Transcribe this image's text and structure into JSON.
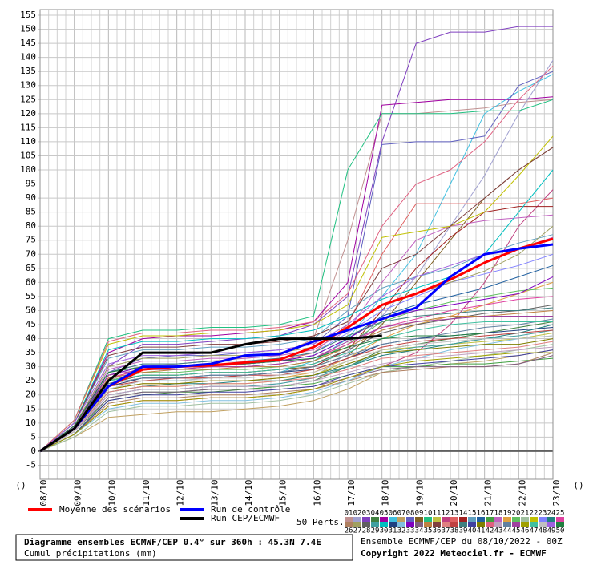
{
  "chart_data": {
    "type": "line",
    "title": "Diagramme ensembles ECMWF/CEP 0.4° sur 360h : 45.3N 7.4E",
    "subtitle": "Cumul précipitations (mm)",
    "run_info": "Ensemble ECMWF/CEP du 08/10/2022 - 00Z",
    "copyright": "Copyright 2022 Meteociel.fr - ECMWF",
    "x_unit_left": "()",
    "x_unit_right": "()",
    "perturbation_label": "50 Perts.",
    "grid": true,
    "categories": [
      "08/10",
      "09/10",
      "10/10",
      "11/10",
      "12/10",
      "13/10",
      "14/10",
      "15/10",
      "16/10",
      "17/10",
      "18/10",
      "19/10",
      "20/10",
      "21/10",
      "22/10",
      "23/10"
    ],
    "ylim": [
      -10,
      157
    ],
    "yticks": [
      -5,
      0,
      5,
      10,
      15,
      20,
      25,
      30,
      35,
      40,
      45,
      50,
      55,
      60,
      65,
      70,
      75,
      80,
      85,
      90,
      95,
      100,
      105,
      110,
      115,
      120,
      125,
      130,
      135,
      140,
      145,
      150,
      155
    ],
    "series": [
      {
        "name": "Moyenne des scénarios",
        "color": "#ff0000",
        "line_width": 3,
        "values": [
          0,
          8,
          23,
          29,
          30,
          30.5,
          31.5,
          32.5,
          37,
          44,
          52,
          56,
          61,
          67,
          72,
          75.5
        ]
      },
      {
        "name": "Run de contrôle",
        "color": "#0000ff",
        "line_width": 3,
        "values": [
          0,
          8,
          23,
          30,
          30,
          31,
          34,
          34.5,
          39,
          43,
          47,
          51,
          62,
          70,
          72,
          73.5
        ]
      },
      {
        "name": "Run CEP/ECMWF",
        "color": "#000000",
        "line_width": 3,
        "values": [
          0,
          8,
          25,
          35,
          35,
          35,
          38,
          40,
          40,
          40,
          41,
          null,
          null,
          null,
          null,
          null
        ]
      },
      {
        "name": "01",
        "color": "#c09090",
        "line_width": 1,
        "values": [
          0,
          8,
          25,
          30,
          31,
          32,
          33,
          34,
          40,
          75,
          120,
          120,
          121,
          122,
          124,
          125
        ]
      },
      {
        "name": "02",
        "color": "#a0a0d0",
        "line_width": 1,
        "values": [
          0,
          7,
          20,
          22,
          22,
          23,
          23,
          24,
          26,
          35,
          48,
          62,
          80,
          98,
          120,
          139
        ]
      },
      {
        "name": "03",
        "color": "#8040c0",
        "line_width": 1,
        "values": [
          0,
          9,
          30,
          38,
          38,
          39,
          40,
          41,
          45,
          55,
          110,
          145,
          149,
          149,
          151,
          151
        ]
      },
      {
        "name": "04",
        "color": "#408040",
        "line_width": 1,
        "values": [
          0,
          6,
          18,
          20,
          21,
          21,
          22,
          23,
          25,
          30,
          36,
          38,
          40,
          42,
          44,
          46
        ]
      },
      {
        "name": "05",
        "color": "#a000a0",
        "line_width": 1,
        "values": [
          0,
          10,
          35,
          40,
          41,
          41,
          42,
          43,
          46,
          60,
          123,
          124,
          125,
          125,
          125,
          126
        ]
      },
      {
        "name": "06",
        "color": "#40c0e0",
        "line_width": 1,
        "values": [
          0,
          8,
          22,
          25,
          25,
          26,
          27,
          28,
          32,
          40,
          55,
          70,
          95,
          120,
          128,
          134
        ]
      },
      {
        "name": "07",
        "color": "#c0a060",
        "line_width": 1,
        "values": [
          0,
          5,
          12,
          13,
          14,
          14,
          15,
          16,
          18,
          22,
          28,
          30,
          31,
          32,
          34,
          36
        ]
      },
      {
        "name": "08",
        "color": "#6060c0",
        "line_width": 1,
        "values": [
          0,
          9,
          28,
          33,
          34,
          34,
          35,
          36,
          38,
          48,
          109,
          110,
          110,
          112,
          130,
          135
        ]
      },
      {
        "name": "09",
        "color": "#806020",
        "line_width": 1,
        "values": [
          0,
          7,
          24,
          27,
          27,
          28,
          28,
          29,
          30,
          34,
          45,
          60,
          75,
          90,
          100,
          108
        ]
      },
      {
        "name": "10",
        "color": "#20c080",
        "line_width": 1,
        "values": [
          0,
          11,
          40,
          43,
          43,
          44,
          44,
          45,
          48,
          100,
          120,
          120,
          120,
          121,
          121,
          125
        ]
      },
      {
        "name": "11",
        "color": "#c0c040",
        "line_width": 1,
        "values": [
          0,
          8,
          21,
          23,
          23,
          24,
          24,
          25,
          27,
          32,
          36,
          37,
          38,
          39,
          40,
          42
        ]
      },
      {
        "name": "12",
        "color": "#c04080",
        "line_width": 1,
        "values": [
          0,
          6,
          16,
          18,
          18,
          19,
          19,
          20,
          22,
          26,
          30,
          35,
          45,
          60,
          80,
          93
        ]
      },
      {
        "name": "13",
        "color": "#e06060",
        "line_width": 1,
        "values": [
          0,
          9,
          26,
          29,
          30,
          30,
          31,
          32,
          35,
          45,
          70,
          88,
          88,
          88,
          88,
          90
        ]
      },
      {
        "name": "14",
        "color": "#a02020",
        "line_width": 1,
        "values": [
          0,
          7,
          23,
          26,
          26,
          26,
          27,
          28,
          30,
          36,
          50,
          65,
          76,
          85,
          87,
          87
        ]
      },
      {
        "name": "15",
        "color": "#60a0c0",
        "line_width": 1,
        "values": [
          0,
          10,
          33,
          36,
          36,
          37,
          37,
          38,
          40,
          50,
          58,
          62,
          65,
          70,
          74,
          77
        ]
      },
      {
        "name": "16",
        "color": "#2060a0",
        "line_width": 1,
        "values": [
          0,
          8,
          27,
          30,
          30,
          31,
          31,
          32,
          34,
          40,
          48,
          52,
          55,
          58,
          62,
          66
        ]
      },
      {
        "name": "17",
        "color": "#40a040",
        "line_width": 1,
        "values": [
          0,
          6,
          19,
          21,
          21,
          22,
          22,
          23,
          24,
          27,
          30,
          30,
          31,
          31,
          32,
          33
        ]
      },
      {
        "name": "18",
        "color": "#c060c0",
        "line_width": 1,
        "values": [
          0,
          9,
          29,
          32,
          32,
          33,
          33,
          34,
          36,
          43,
          60,
          75,
          80,
          82,
          83,
          84
        ]
      },
      {
        "name": "19",
        "color": "#e0a040",
        "line_width": 1,
        "values": [
          0,
          7,
          22,
          24,
          24,
          25,
          25,
          26,
          28,
          33,
          40,
          45,
          48,
          52,
          56,
          60
        ]
      },
      {
        "name": "20",
        "color": "#60c060",
        "line_width": 1,
        "values": [
          0,
          8,
          25,
          28,
          28,
          29,
          29,
          30,
          32,
          38,
          46,
          50,
          53,
          55,
          57,
          58
        ]
      },
      {
        "name": "21",
        "color": "#a0c0a0",
        "line_width": 1,
        "values": [
          0,
          5,
          14,
          16,
          16,
          17,
          17,
          18,
          20,
          24,
          28,
          30,
          32,
          34,
          36,
          38
        ]
      },
      {
        "name": "22",
        "color": "#c0c000",
        "line_width": 1,
        "values": [
          0,
          11,
          38,
          41,
          41,
          42,
          42,
          43,
          45,
          52,
          76,
          78,
          80,
          85,
          98,
          112
        ]
      },
      {
        "name": "23",
        "color": "#8080ff",
        "line_width": 1,
        "values": [
          0,
          9,
          28,
          31,
          31,
          32,
          32,
          33,
          35,
          42,
          50,
          55,
          60,
          63,
          66,
          70
        ]
      },
      {
        "name": "24",
        "color": "#208080",
        "line_width": 1,
        "values": [
          0,
          7,
          21,
          23,
          24,
          24,
          25,
          25,
          27,
          30,
          34,
          36,
          38,
          40,
          42,
          45
        ]
      },
      {
        "name": "25",
        "color": "#e040a0",
        "line_width": 1,
        "values": [
          0,
          8,
          26,
          29,
          29,
          30,
          30,
          31,
          33,
          38,
          44,
          47,
          50,
          52,
          54,
          55
        ]
      },
      {
        "name": "26",
        "color": "#b08060",
        "line_width": 1,
        "values": [
          0,
          6,
          17,
          19,
          19,
          20,
          20,
          21,
          22,
          25,
          28,
          29,
          30,
          30,
          31,
          35
        ]
      },
      {
        "name": "27",
        "color": "#a0a060",
        "line_width": 1,
        "values": [
          0,
          9,
          30,
          33,
          33,
          34,
          34,
          35,
          37,
          44,
          52,
          56,
          60,
          64,
          70,
          80
        ]
      },
      {
        "name": "28",
        "color": "#606060",
        "line_width": 1,
        "values": [
          0,
          8,
          24,
          27,
          27,
          28,
          28,
          29,
          31,
          36,
          42,
          45,
          47,
          49,
          50,
          52
        ]
      },
      {
        "name": "29",
        "color": "#40a0a0",
        "line_width": 1,
        "values": [
          0,
          7,
          20,
          22,
          22,
          23,
          23,
          24,
          26,
          30,
          35,
          37,
          38,
          40,
          41,
          43
        ]
      },
      {
        "name": "30",
        "color": "#00c0c0",
        "line_width": 1,
        "values": [
          0,
          10,
          36,
          39,
          39,
          40,
          40,
          41,
          43,
          48,
          54,
          58,
          62,
          70,
          85,
          100
        ]
      },
      {
        "name": "31",
        "color": "#204080",
        "line_width": 1,
        "values": [
          0,
          8,
          23,
          26,
          26,
          27,
          27,
          28,
          29,
          33,
          38,
          40,
          41,
          42,
          43,
          44
        ]
      },
      {
        "name": "32",
        "color": "#80c0e0",
        "line_width": 1,
        "values": [
          0,
          6,
          15,
          17,
          17,
          18,
          18,
          19,
          21,
          25,
          30,
          33,
          36,
          38,
          40,
          41
        ]
      },
      {
        "name": "33",
        "color": "#8000c0",
        "line_width": 1,
        "values": [
          0,
          9,
          27,
          30,
          30,
          31,
          31,
          32,
          34,
          40,
          47,
          50,
          52,
          54,
          56,
          62
        ]
      },
      {
        "name": "34",
        "color": "#806080",
        "line_width": 1,
        "values": [
          0,
          7,
          19,
          21,
          21,
          22,
          22,
          22,
          23,
          26,
          29,
          30,
          30,
          30,
          31,
          34
        ]
      },
      {
        "name": "35",
        "color": "#c08040",
        "line_width": 1,
        "values": [
          0,
          8,
          26,
          28,
          29,
          29,
          30,
          30,
          32,
          37,
          43,
          46,
          48,
          48,
          49,
          50
        ]
      },
      {
        "name": "36",
        "color": "#804040",
        "line_width": 1,
        "values": [
          0,
          10,
          34,
          37,
          37,
          38,
          38,
          39,
          41,
          46,
          65,
          70,
          80,
          90,
          100,
          108
        ]
      },
      {
        "name": "37",
        "color": "#e08080",
        "line_width": 1,
        "values": [
          0,
          7,
          21,
          23,
          23,
          24,
          24,
          25,
          26,
          29,
          33,
          34,
          35,
          36,
          37,
          39
        ]
      },
      {
        "name": "38",
        "color": "#c04040",
        "line_width": 1,
        "values": [
          0,
          8,
          23,
          25,
          26,
          26,
          27,
          27,
          29,
          33,
          37,
          39,
          40,
          41,
          42,
          43
        ]
      },
      {
        "name": "39",
        "color": "#408080",
        "line_width": 1,
        "values": [
          0,
          9,
          28,
          31,
          31,
          32,
          32,
          33,
          35,
          41,
          46,
          48,
          49,
          50,
          50,
          51
        ]
      },
      {
        "name": "40",
        "color": "#4040a0",
        "line_width": 1,
        "values": [
          0,
          6,
          18,
          20,
          20,
          21,
          21,
          22,
          23,
          27,
          30,
          31,
          32,
          33,
          34,
          36
        ]
      },
      {
        "name": "41",
        "color": "#808000",
        "line_width": 1,
        "values": [
          0,
          8,
          22,
          24,
          24,
          25,
          25,
          26,
          27,
          31,
          35,
          36,
          37,
          38,
          38,
          40
        ]
      },
      {
        "name": "42",
        "color": "#e06080",
        "line_width": 1,
        "values": [
          0,
          11,
          39,
          42,
          42,
          43,
          43,
          44,
          46,
          56,
          80,
          95,
          100,
          110,
          125,
          137
        ]
      },
      {
        "name": "43",
        "color": "#c0a0c0",
        "line_width": 1,
        "values": [
          0,
          7,
          20,
          22,
          22,
          23,
          23,
          23,
          25,
          28,
          31,
          33,
          34,
          35,
          36,
          37
        ]
      },
      {
        "name": "44",
        "color": "#6080a0",
        "line_width": 1,
        "values": [
          0,
          8,
          24,
          26,
          26,
          27,
          27,
          28,
          30,
          34,
          38,
          40,
          42,
          44,
          45,
          47
        ]
      },
      {
        "name": "45",
        "color": "#a040a0",
        "line_width": 1,
        "values": [
          0,
          9,
          27,
          29,
          29,
          30,
          30,
          31,
          33,
          39,
          44,
          46,
          47,
          48,
          48,
          48
        ]
      },
      {
        "name": "46",
        "color": "#a0a000",
        "line_width": 1,
        "values": [
          0,
          6,
          16,
          18,
          18,
          19,
          19,
          20,
          22,
          26,
          30,
          32,
          33,
          34,
          35,
          35
        ]
      },
      {
        "name": "47",
        "color": "#40c0a0",
        "line_width": 1,
        "values": [
          0,
          8,
          25,
          27,
          27,
          28,
          28,
          29,
          31,
          35,
          40,
          43,
          45,
          46,
          46,
          46
        ]
      },
      {
        "name": "48",
        "color": "#c0c0c0",
        "line_width": 1,
        "values": [
          0,
          7,
          22,
          25,
          25,
          26,
          26,
          27,
          28,
          32,
          36,
          38,
          39,
          40,
          40,
          41
        ]
      },
      {
        "name": "49",
        "color": "#a060e0",
        "line_width": 1,
        "values": [
          0,
          10,
          31,
          34,
          34,
          35,
          35,
          36,
          38,
          45,
          55,
          62,
          66,
          70,
          72,
          76
        ]
      },
      {
        "name": "50",
        "color": "#208040",
        "line_width": 1,
        "values": [
          0,
          9,
          28,
          30,
          30,
          31,
          31,
          32,
          33,
          37,
          40,
          41,
          41,
          42,
          42,
          42
        ]
      }
    ]
  }
}
